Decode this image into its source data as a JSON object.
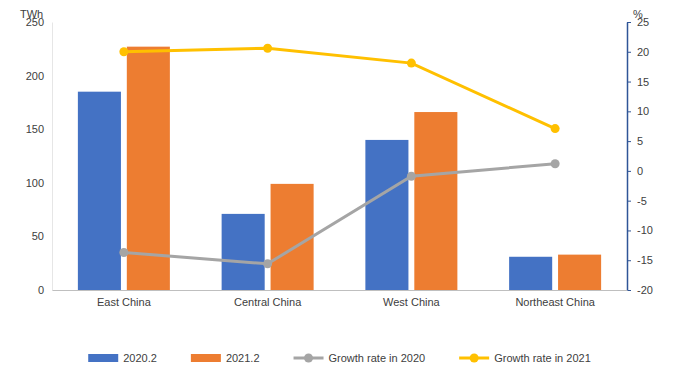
{
  "chart_data": {
    "type": "bar",
    "categories": [
      "East China",
      "Central China",
      "West China",
      "Northeast China"
    ],
    "series": [
      {
        "name": "2020.2",
        "type": "bar",
        "color": "#4472c4",
        "values": [
          185,
          71,
          140,
          31
        ]
      },
      {
        "name": "2021.2",
        "type": "bar",
        "color": "#ed7d31",
        "values": [
          227,
          99,
          166,
          33
        ]
      },
      {
        "name": "Growth rate in 2020",
        "type": "line",
        "axis": "y2",
        "color": "#a5a5a5",
        "marker": "circle",
        "line_style": "solid",
        "values": [
          -13.7,
          -15.6,
          -0.9,
          1.2
        ]
      },
      {
        "name": "Growth rate in 2021",
        "type": "line",
        "axis": "y2",
        "color": "#ffc000",
        "marker": "circle",
        "line_style": "solid",
        "values": [
          20.0,
          20.6,
          18.1,
          7.1
        ]
      }
    ],
    "y_label": "TWh",
    "y2_label": "%",
    "ylim": [
      0,
      250
    ],
    "yticks": [
      0,
      50,
      100,
      150,
      200,
      250
    ],
    "y2lim": [
      -20,
      25
    ],
    "y2ticks": [
      -20,
      -15,
      -10,
      -5,
      0,
      5,
      10,
      15,
      20,
      25
    ],
    "grid": false,
    "legend": "bottom"
  }
}
